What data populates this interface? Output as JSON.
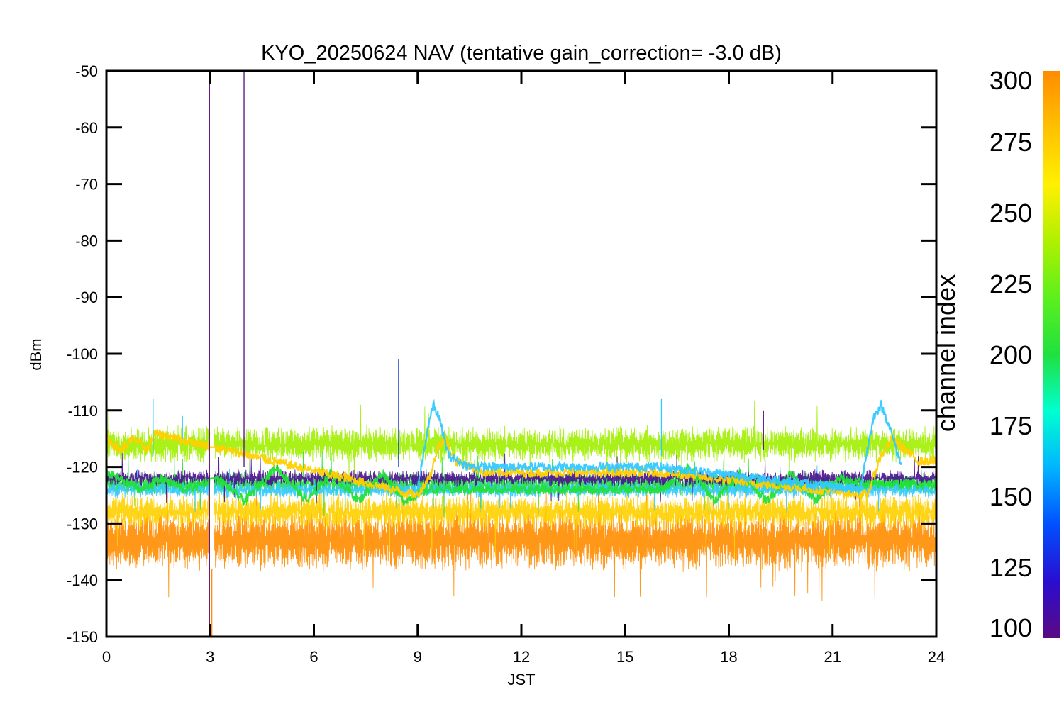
{
  "chart_data": {
    "type": "line",
    "title": "KYO_20250624 NAV (tentative gain_correction= -3.0 dB)",
    "xlabel": "JST",
    "ylabel": "dBm",
    "xlim": [
      0,
      24
    ],
    "ylim": [
      -150,
      -50
    ],
    "xticks": [
      0,
      3,
      6,
      9,
      12,
      15,
      18,
      21,
      24
    ],
    "yticks": [
      -50,
      -60,
      -70,
      -80,
      -90,
      -100,
      -110,
      -120,
      -130,
      -140,
      -150
    ],
    "grid": false,
    "colorbar": {
      "label": "channel index",
      "range": [
        100,
        300
      ],
      "ticks": [
        300,
        275,
        250,
        225,
        200,
        175,
        150,
        125,
        100
      ],
      "colors": [
        "#5a0a82",
        "#2a0dd0",
        "#0050ff",
        "#00b4ff",
        "#00ffd0",
        "#20e040",
        "#5cf01c",
        "#b0f000",
        "#fff000",
        "#ffc000",
        "#ff8c00"
      ]
    },
    "series": [
      {
        "color": "#ff8c00",
        "band_center": -133,
        "band_halfwidth": 4.5,
        "noise": 2.5
      },
      {
        "color": "#ffd000",
        "band_center": -128,
        "band_halfwidth": 2.5,
        "noise": 2.0
      },
      {
        "color": "#a0f000",
        "band_center": -116,
        "band_halfwidth": 2.5,
        "noise": 2.0
      },
      {
        "color": "#22e03a",
        "band_center": -123,
        "band_halfwidth": 1.5,
        "noise": 1.5
      },
      {
        "color": "#33c9ff",
        "band_center": -124,
        "band_halfwidth": 1.0,
        "noise": 1.2
      },
      {
        "color": "#4a1090",
        "band_center": -122,
        "band_halfwidth": 1.0,
        "noise": 1.2
      }
    ],
    "oscillating_traces": [
      {
        "color": "#22e03a",
        "x": [
          0.0,
          1.0,
          1.6,
          2.3,
          3.2,
          4.0,
          4.9,
          5.8,
          6.5,
          7.3,
          8.0,
          8.6,
          9.3,
          10.0,
          16.1,
          16.8,
          17.6,
          18.3,
          19.1,
          19.8,
          20.5,
          21.2,
          22.0,
          24.0
        ],
        "y": [
          -121,
          -124,
          -122,
          -124,
          -122,
          -126,
          -120,
          -126,
          -121,
          -126,
          -121,
          -126,
          -124,
          -124,
          -124,
          -120,
          -126,
          -121,
          -126,
          -121,
          -126,
          -122,
          -123,
          -123
        ]
      },
      {
        "color": "#ffd000",
        "x": [
          0.0,
          0.4,
          0.8,
          1.2,
          1.4,
          9.0,
          9.4,
          9.6,
          9.8,
          10.1,
          11.0,
          13.0,
          15.0,
          16.0,
          22.0,
          22.4,
          22.7,
          23.1,
          23.5,
          24.0
        ],
        "y": [
          -115,
          -117,
          -115,
          -117,
          -114,
          -125,
          -121,
          -116,
          -115,
          -119,
          -121,
          -121,
          -121,
          -121,
          -125,
          -118,
          -115,
          -117,
          -119,
          -119
        ]
      },
      {
        "color": "#33c9ff",
        "x": [
          9.0,
          9.3,
          9.45,
          9.6,
          9.9,
          10.5,
          15.0,
          16.0,
          21.8,
          22.0,
          22.2,
          22.4,
          22.6,
          23.0
        ],
        "y": [
          -124,
          -113,
          -109,
          -111,
          -118,
          -120,
          -120,
          -120,
          -124,
          -117,
          -111,
          -109,
          -112,
          -120
        ]
      }
    ],
    "spikes": [
      {
        "x": 2.98,
        "from": -150,
        "to": -50,
        "color": "#5a0a82"
      },
      {
        "x": 3.98,
        "from": -120,
        "to": -50,
        "color": "#5a0a82"
      },
      {
        "x": 8.45,
        "from": -120,
        "to": -101,
        "color": "#1030d0"
      },
      {
        "x": 1.35,
        "from": -118,
        "to": -108,
        "color": "#33c9ff"
      },
      {
        "x": 16.05,
        "from": -118,
        "to": -108,
        "color": "#33c9ff"
      },
      {
        "x": 19.0,
        "from": -117,
        "to": -110,
        "color": "#5a0a82"
      },
      {
        "x": 2.2,
        "from": -115,
        "to": -111,
        "color": "#33c9ff"
      },
      {
        "x": 3.05,
        "from": -150,
        "to": -138,
        "color": "#ff8c00"
      }
    ],
    "gap": {
      "x_from": 2.99,
      "x_to": 3.12
    }
  }
}
